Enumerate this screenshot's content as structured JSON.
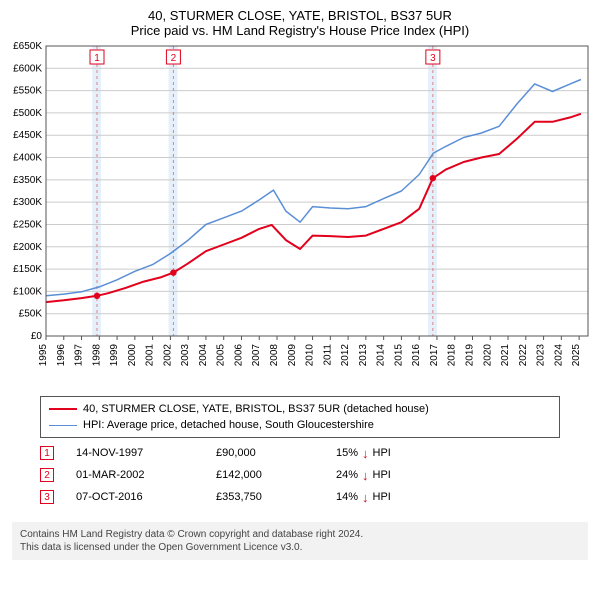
{
  "title_line1": "40, STURMER CLOSE, YATE, BRISTOL, BS37 5UR",
  "title_line2": "Price paid vs. HM Land Registry's House Price Index (HPI)",
  "chart": {
    "type": "line",
    "background_color": "#ffffff",
    "plot_border_color": "#555555",
    "grid_color": "#cccccc",
    "event_band_fill": "#e6f0fa",
    "event_line_color": "#d9848b",
    "event_line_dash": "3,3",
    "x": {
      "min": 1995,
      "max": 2025.5,
      "ticks": [
        1995,
        1996,
        1997,
        1998,
        1999,
        2000,
        2001,
        2002,
        2003,
        2004,
        2005,
        2006,
        2007,
        2008,
        2009,
        2010,
        2011,
        2012,
        2013,
        2014,
        2015,
        2016,
        2017,
        2018,
        2019,
        2020,
        2021,
        2022,
        2023,
        2024,
        2025
      ],
      "tick_label_fontsize": 10,
      "tick_rotation": -90
    },
    "y": {
      "min": 0,
      "max": 650000,
      "tick_step": 50000,
      "tick_labels": [
        "£0",
        "£50K",
        "£100K",
        "£150K",
        "£200K",
        "£250K",
        "£300K",
        "£350K",
        "£400K",
        "£450K",
        "£500K",
        "£550K",
        "£600K",
        "£650K"
      ],
      "tick_label_fontsize": 10
    },
    "series": [
      {
        "name": "40, STURMER CLOSE, YATE, BRISTOL, BS37 5UR (detached house)",
        "color": "#e2001c",
        "line_width": 2,
        "xs": [
          1995,
          1996,
          1997,
          1997.87,
          1998.5,
          1999.5,
          2000.5,
          2001.5,
          2002.17,
          2003,
          2004,
          2005,
          2006,
          2007,
          2007.7,
          2008.5,
          2009.3,
          2010,
          2011,
          2012,
          2013,
          2014,
          2015,
          2016,
          2016.77,
          2017.5,
          2018.5,
          2019.5,
          2020.5,
          2021.5,
          2022.5,
          2023.5,
          2024.5,
          2025.1
        ],
        "ys": [
          76000,
          80000,
          85000,
          90000,
          96000,
          108000,
          122000,
          132000,
          142000,
          163000,
          190000,
          205000,
          220000,
          240000,
          249000,
          215000,
          195000,
          225000,
          224000,
          222000,
          225000,
          240000,
          255000,
          285000,
          353750,
          373000,
          390000,
          400000,
          408000,
          442000,
          480000,
          480000,
          490000,
          498000
        ]
      },
      {
        "name": "HPI: Average price, detached house, South Gloucestershire",
        "color": "#5a8fd6",
        "line_width": 1.5,
        "xs": [
          1995,
          1996,
          1997,
          1998,
          1999,
          2000,
          2001,
          2002,
          2003,
          2004,
          2005,
          2006,
          2007,
          2007.8,
          2008.5,
          2009.3,
          2010,
          2011,
          2012,
          2013,
          2014,
          2015,
          2016,
          2016.8,
          2017.5,
          2018.5,
          2019.5,
          2020.5,
          2021.5,
          2022.5,
          2023.5,
          2024.5,
          2025.1
        ],
        "ys": [
          90000,
          94000,
          99000,
          110000,
          126000,
          145000,
          160000,
          185000,
          215000,
          250000,
          265000,
          280000,
          305000,
          327000,
          280000,
          255000,
          290000,
          287000,
          285000,
          290000,
          308000,
          325000,
          362000,
          410000,
          425000,
          445000,
          455000,
          470000,
          520000,
          565000,
          548000,
          565000,
          575000
        ]
      }
    ],
    "event_bands": [
      {
        "start": 1997.6,
        "end": 1998.1
      },
      {
        "start": 2001.9,
        "end": 2002.4
      },
      {
        "start": 2016.5,
        "end": 2017.0
      }
    ],
    "event_markers": [
      {
        "label": "1",
        "x": 1997.87,
        "y": 90000,
        "badge_color": "#e2001c"
      },
      {
        "label": "2",
        "x": 2002.17,
        "y": 142000,
        "badge_color": "#e2001c"
      },
      {
        "label": "3",
        "x": 2016.77,
        "y": 353750,
        "badge_color": "#e2001c"
      }
    ],
    "dot_radius": 3.2
  },
  "legend": {
    "rows": [
      {
        "label": "40, STURMER CLOSE, YATE, BRISTOL, BS37 5UR (detached house)",
        "color": "#e2001c",
        "width": 2
      },
      {
        "label": "HPI: Average price, detached house, South Gloucestershire",
        "color": "#5a8fd6",
        "width": 1.5
      }
    ]
  },
  "marker_rows": [
    {
      "badge": "1",
      "badge_color": "#e2001c",
      "date": "14-NOV-1997",
      "price": "£90,000",
      "delta": "15%",
      "dir": "↓",
      "suffix": "HPI"
    },
    {
      "badge": "2",
      "badge_color": "#e2001c",
      "date": "01-MAR-2002",
      "price": "£142,000",
      "delta": "24%",
      "dir": "↓",
      "suffix": "HPI"
    },
    {
      "badge": "3",
      "badge_color": "#e2001c",
      "date": "07-OCT-2016",
      "price": "£353,750",
      "delta": "14%",
      "dir": "↓",
      "suffix": "HPI"
    }
  ],
  "footer_line1": "Contains HM Land Registry data © Crown copyright and database right 2024.",
  "footer_line2": "This data is licensed under the Open Government Licence v3.0."
}
